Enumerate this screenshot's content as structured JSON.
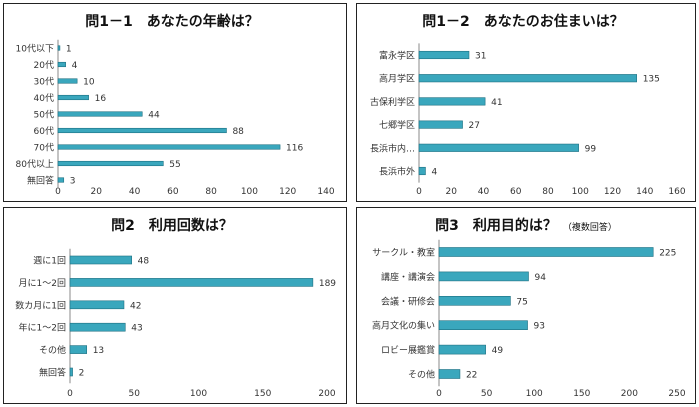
{
  "colors": {
    "bar": "#3aa7bd",
    "bar_edge": "#1d6f80",
    "text": "#333333",
    "axis": "#888888"
  },
  "chart_data": [
    {
      "type": "bar",
      "orientation": "horizontal",
      "title": "問1－1　あなたの年齢は？",
      "note": "",
      "categories": [
        "10代以下",
        "20代",
        "30代",
        "40代",
        "50代",
        "60代",
        "70代",
        "80代以上",
        "無回答"
      ],
      "values": [
        1,
        4,
        10,
        16,
        44,
        88,
        116,
        55,
        3
      ],
      "xlim": [
        0,
        140
      ],
      "xticks": [
        "0",
        "20",
        "40",
        "60",
        "80",
        "100",
        "120",
        "140"
      ],
      "grid": false
    },
    {
      "type": "bar",
      "orientation": "horizontal",
      "title": "問1－2　あなたのお住まいは？",
      "note": "",
      "categories": [
        "富永学区",
        "高月学区",
        "古保利学区",
        "七郷学区",
        "長浜市内…",
        "長浜市外"
      ],
      "values": [
        31,
        135,
        41,
        27,
        99,
        4
      ],
      "xlim": [
        0,
        160
      ],
      "xticks": [
        "0",
        "20",
        "40",
        "60",
        "80",
        "100",
        "120",
        "140",
        "160"
      ],
      "grid": false
    },
    {
      "type": "bar",
      "orientation": "horizontal",
      "title": "問2　利用回数は？",
      "note": "",
      "categories": [
        "週に1回",
        "月に1～2回",
        "数カ月に1回",
        "年に1～2回",
        "その他",
        "無回答"
      ],
      "values": [
        48,
        189,
        42,
        43,
        13,
        2
      ],
      "xlim": [
        0,
        200
      ],
      "xticks": [
        "0",
        "50",
        "100",
        "150",
        "200"
      ],
      "grid": false
    },
    {
      "type": "bar",
      "orientation": "horizontal",
      "title": "問3　利用目的は？",
      "note": "（複数回答）",
      "categories": [
        "サークル・教室",
        "講座・講演会",
        "会議・研修会",
        "高月文化の集い",
        "ロビー展鑑賞",
        "その他"
      ],
      "values": [
        225,
        94,
        75,
        93,
        49,
        22
      ],
      "xlim": [
        0,
        250
      ],
      "xticks": [
        "0",
        "50",
        "100",
        "150",
        "200",
        "250"
      ],
      "grid": false
    }
  ]
}
